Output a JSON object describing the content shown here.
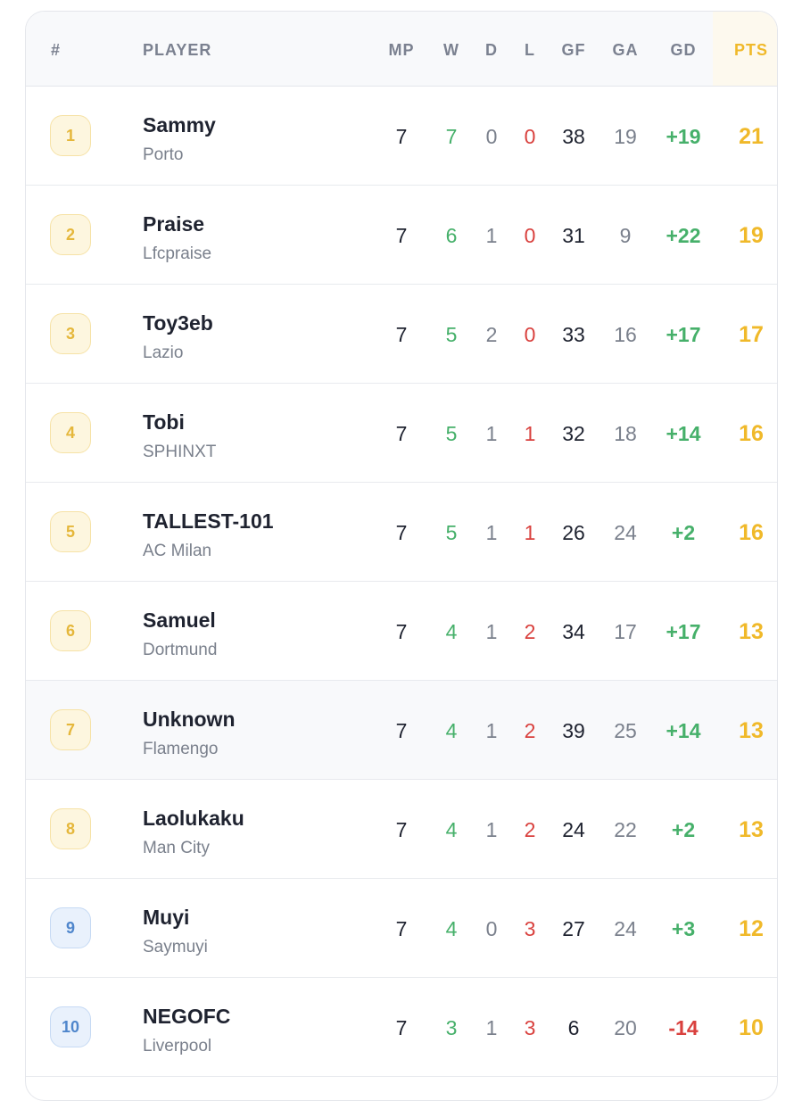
{
  "headers": {
    "rank": "#",
    "player": "PLAYER",
    "mp": "MP",
    "w": "W",
    "d": "D",
    "l": "L",
    "gf": "GF",
    "ga": "GA",
    "gd": "GD",
    "pts": "PTS"
  },
  "colors": {
    "win": "#46b06a",
    "loss": "#d9413e",
    "points": "#f0b92a",
    "top_badge": "#e5b73b",
    "lower_badge": "#4f86cc"
  },
  "rows": [
    {
      "rank": "1",
      "name": "Sammy",
      "team": "Porto",
      "mp": "7",
      "w": "7",
      "d": "0",
      "l": "0",
      "gf": "38",
      "ga": "19",
      "gd": "+19",
      "pts": "21"
    },
    {
      "rank": "2",
      "name": "Praise",
      "team": "Lfcpraise",
      "mp": "7",
      "w": "6",
      "d": "1",
      "l": "0",
      "gf": "31",
      "ga": "9",
      "gd": "+22",
      "pts": "19"
    },
    {
      "rank": "3",
      "name": "Toy3eb",
      "team": "Lazio",
      "mp": "7",
      "w": "5",
      "d": "2",
      "l": "0",
      "gf": "33",
      "ga": "16",
      "gd": "+17",
      "pts": "17"
    },
    {
      "rank": "4",
      "name": "Tobi",
      "team": "SPHINXT",
      "mp": "7",
      "w": "5",
      "d": "1",
      "l": "1",
      "gf": "32",
      "ga": "18",
      "gd": "+14",
      "pts": "16"
    },
    {
      "rank": "5",
      "name": "TALLEST-101",
      "team": "AC Milan",
      "mp": "7",
      "w": "5",
      "d": "1",
      "l": "1",
      "gf": "26",
      "ga": "24",
      "gd": "+2",
      "pts": "16"
    },
    {
      "rank": "6",
      "name": "Samuel",
      "team": "Dortmund",
      "mp": "7",
      "w": "4",
      "d": "1",
      "l": "2",
      "gf": "34",
      "ga": "17",
      "gd": "+17",
      "pts": "13"
    },
    {
      "rank": "7",
      "name": "Unknown",
      "team": "Flamengo",
      "mp": "7",
      "w": "4",
      "d": "1",
      "l": "2",
      "gf": "39",
      "ga": "25",
      "gd": "+14",
      "pts": "13"
    },
    {
      "rank": "8",
      "name": "Laolukaku",
      "team": "Man City",
      "mp": "7",
      "w": "4",
      "d": "1",
      "l": "2",
      "gf": "24",
      "ga": "22",
      "gd": "+2",
      "pts": "13"
    },
    {
      "rank": "9",
      "name": "Muyi",
      "team": "Saymuyi",
      "mp": "7",
      "w": "4",
      "d": "0",
      "l": "3",
      "gf": "27",
      "ga": "24",
      "gd": "+3",
      "pts": "12"
    },
    {
      "rank": "10",
      "name": "NEGOFC",
      "team": "Liverpool",
      "mp": "7",
      "w": "3",
      "d": "1",
      "l": "3",
      "gf": "6",
      "ga": "20",
      "gd": "-14",
      "pts": "10"
    }
  ]
}
